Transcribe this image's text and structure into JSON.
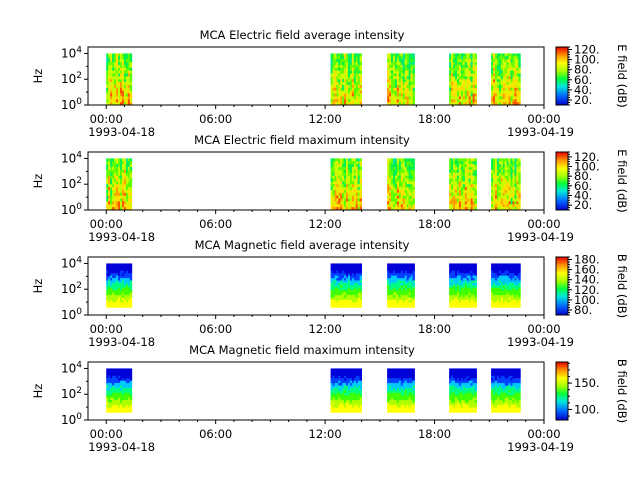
{
  "chart_data": [
    {
      "type": "heatmap",
      "title": "MCA  Electric field average intensity",
      "ylabel": "Hz",
      "ylim_log10": [
        0,
        4.5
      ],
      "yticks": [
        {
          "exp": "0",
          "value": 0
        },
        {
          "exp": "2",
          "value": 2
        },
        {
          "exp": "4",
          "value": 4
        }
      ],
      "colorbar": {
        "label": "E field (dB)",
        "range": [
          10,
          125
        ],
        "ticks": [
          {
            "label": "20.",
            "value": 20
          },
          {
            "label": "40.",
            "value": 40
          },
          {
            "label": "60.",
            "value": 60
          },
          {
            "label": "80.",
            "value": 80
          },
          {
            "label": "100.",
            "value": 100
          },
          {
            "label": "120.",
            "value": 120
          }
        ]
      },
      "intervals": [
        [
          0.0,
          1.4
        ],
        [
          12.3,
          14.0
        ],
        [
          15.4,
          16.9
        ],
        [
          18.8,
          20.3
        ],
        [
          21.1,
          22.7
        ]
      ],
      "freq_range_log10": [
        0,
        4
      ],
      "palette": "efield"
    },
    {
      "type": "heatmap",
      "title": "MCA  Electric field maximum intensity",
      "ylabel": "Hz",
      "ylim_log10": [
        0,
        4.5
      ],
      "yticks": [
        {
          "exp": "0",
          "value": 0
        },
        {
          "exp": "2",
          "value": 2
        },
        {
          "exp": "4",
          "value": 4
        }
      ],
      "colorbar": {
        "label": "E field (dB)",
        "range": [
          10,
          130
        ],
        "ticks": [
          {
            "label": "20.",
            "value": 20
          },
          {
            "label": "40.",
            "value": 40
          },
          {
            "label": "60.",
            "value": 60
          },
          {
            "label": "80.",
            "value": 80
          },
          {
            "label": "100.",
            "value": 100
          },
          {
            "label": "120.",
            "value": 120
          }
        ]
      },
      "intervals": [
        [
          0.0,
          1.4
        ],
        [
          12.3,
          14.0
        ],
        [
          15.4,
          16.9
        ],
        [
          18.8,
          20.3
        ],
        [
          21.1,
          22.7
        ]
      ],
      "freq_range_log10": [
        0,
        4
      ],
      "palette": "efield"
    },
    {
      "type": "heatmap",
      "title": "MCA  Magnetic field average intensity",
      "ylabel": "Hz",
      "ylim_log10": [
        0,
        4.5
      ],
      "yticks": [
        {
          "exp": "0",
          "value": 0
        },
        {
          "exp": "2",
          "value": 2
        },
        {
          "exp": "4",
          "value": 4
        }
      ],
      "colorbar": {
        "label": "B field (dB)",
        "range": [
          70,
          185
        ],
        "ticks": [
          {
            "label": "80.",
            "value": 80
          },
          {
            "label": "100.",
            "value": 100
          },
          {
            "label": "120.",
            "value": 120
          },
          {
            "label": "140.",
            "value": 140
          },
          {
            "label": "160.",
            "value": 160
          },
          {
            "label": "180.",
            "value": 180
          }
        ]
      },
      "intervals": [
        [
          0.0,
          1.4
        ],
        [
          12.3,
          14.0
        ],
        [
          15.4,
          16.9
        ],
        [
          18.8,
          20.3
        ],
        [
          21.1,
          22.7
        ]
      ],
      "freq_range_log10": [
        0.6,
        4
      ],
      "palette": "bfield"
    },
    {
      "type": "heatmap",
      "title": "MCA  Magnetic field maximum intensity",
      "ylabel": "Hz",
      "ylim_log10": [
        0,
        4.5
      ],
      "yticks": [
        {
          "exp": "0",
          "value": 0
        },
        {
          "exp": "2",
          "value": 2
        },
        {
          "exp": "4",
          "value": 4
        }
      ],
      "colorbar": {
        "label": "B field (dB)",
        "range": [
          80,
          190
        ],
        "ticks": [
          {
            "label": "100.",
            "value": 100
          },
          {
            "label": "150.",
            "value": 150
          }
        ]
      },
      "intervals": [
        [
          0.0,
          1.4
        ],
        [
          12.3,
          14.0
        ],
        [
          15.4,
          16.9
        ],
        [
          18.8,
          20.3
        ],
        [
          21.1,
          22.7
        ]
      ],
      "freq_range_log10": [
        0.6,
        4
      ],
      "palette": "bfield"
    }
  ],
  "xaxis": {
    "range_hours": [
      -1.0,
      24.0
    ],
    "ticks": [
      {
        "label": "00:00",
        "hour": 0
      },
      {
        "label": "06:00",
        "hour": 6
      },
      {
        "label": "12:00",
        "hour": 12
      },
      {
        "label": "18:00",
        "hour": 18
      },
      {
        "label": "00:00",
        "hour": 24
      }
    ],
    "date_start": "1993-04-18",
    "date_end": "1993-04-19"
  }
}
